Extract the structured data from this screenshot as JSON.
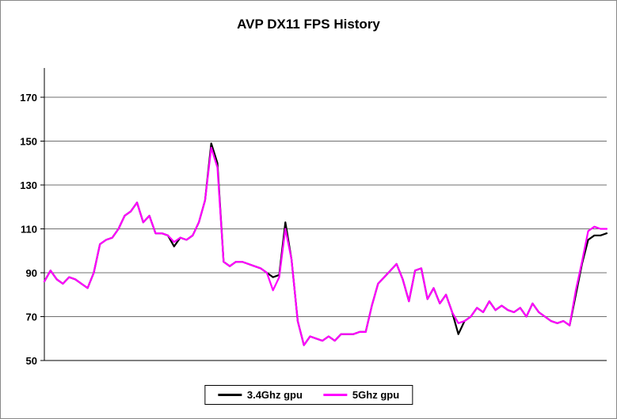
{
  "chart_data": {
    "type": "line",
    "title": "AVP DX11 FPS History",
    "xlabel": "",
    "ylabel": "",
    "ylim": [
      50,
      170
    ],
    "yticks": [
      50,
      70,
      90,
      110,
      130,
      150,
      170
    ],
    "grid": true,
    "legend_position": "bottom",
    "series": [
      {
        "name": "3.4Ghz gpu",
        "color": "#000000",
        "values": [
          86,
          91,
          87,
          85,
          88,
          87,
          85,
          83,
          90,
          103,
          105,
          106,
          110,
          116,
          118,
          122,
          113,
          116,
          108,
          108,
          107,
          102,
          106,
          105,
          107,
          113,
          123,
          149,
          140,
          95,
          93,
          95,
          95,
          94,
          93,
          92,
          90,
          88,
          89,
          113,
          96,
          68,
          57,
          61,
          60,
          59,
          61,
          59,
          62,
          62,
          62,
          63,
          63,
          75,
          85,
          88,
          91,
          94,
          87,
          77,
          91,
          92,
          78,
          83,
          76,
          80,
          72,
          62,
          68,
          70,
          74,
          72,
          77,
          73,
          75,
          73,
          72,
          74,
          70,
          76,
          72,
          70,
          68,
          67,
          68,
          66,
          80,
          94,
          105,
          107,
          107,
          108
        ]
      },
      {
        "name": "5Ghz gpu",
        "color": "#FF00FF",
        "values": [
          86,
          91,
          87,
          85,
          88,
          87,
          85,
          83,
          90,
          103,
          105,
          106,
          110,
          116,
          118,
          122,
          113,
          116,
          108,
          108,
          107,
          104,
          106,
          105,
          107,
          113,
          123,
          147,
          138,
          95,
          93,
          95,
          95,
          94,
          93,
          92,
          90,
          82,
          88,
          110,
          96,
          68,
          57,
          61,
          60,
          59,
          61,
          59,
          62,
          62,
          62,
          63,
          63,
          75,
          85,
          88,
          91,
          94,
          87,
          77,
          91,
          92,
          78,
          83,
          76,
          80,
          72,
          67,
          68,
          70,
          74,
          72,
          77,
          73,
          75,
          73,
          72,
          74,
          70,
          76,
          72,
          70,
          68,
          67,
          68,
          66,
          82,
          95,
          109,
          111,
          110,
          110
        ]
      }
    ]
  }
}
